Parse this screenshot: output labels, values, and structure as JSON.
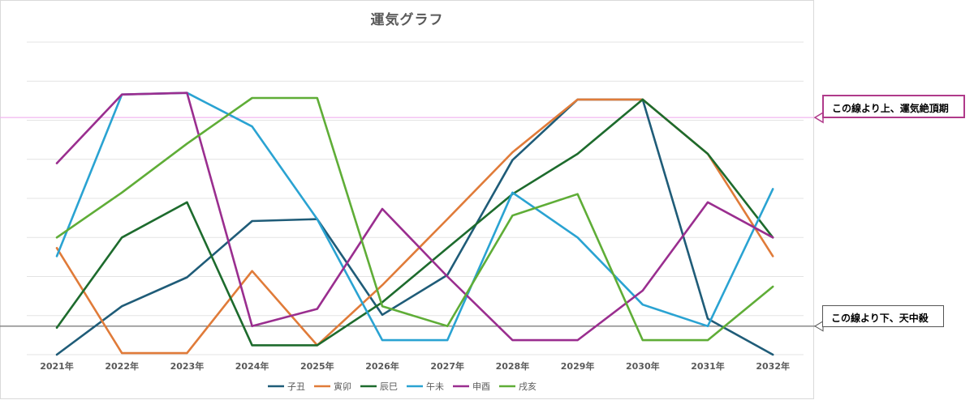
{
  "chart_data": {
    "type": "line",
    "title": "運気グラフ",
    "categories": [
      "2021年",
      "2022年",
      "2023年",
      "2024年",
      "2025年",
      "2026年",
      "2027年",
      "2028年",
      "2029年",
      "2030年",
      "2031年",
      "2032年"
    ],
    "ylim": [
      0,
      8
    ],
    "grid": true,
    "legend_position": "bottom",
    "series": [
      {
        "name": "子丑",
        "color": "#1f5c78",
        "values": [
          0.0,
          1.24,
          1.98,
          3.42,
          3.47,
          1.02,
          2.04,
          4.98,
          6.53,
          6.53,
          0.92,
          0.0
        ]
      },
      {
        "name": "寅卯",
        "color": "#e07b39",
        "values": [
          2.73,
          0.04,
          0.04,
          2.14,
          0.24,
          1.78,
          3.47,
          5.18,
          6.53,
          6.53,
          5.14,
          2.52
        ]
      },
      {
        "name": "辰巳",
        "color": "#1d6b2d",
        "values": [
          0.69,
          3.0,
          3.9,
          0.24,
          0.24,
          1.34,
          2.73,
          4.11,
          5.14,
          6.53,
          5.14,
          3.0
        ]
      },
      {
        "name": "午未",
        "color": "#2aa3d2",
        "values": [
          2.52,
          6.66,
          6.7,
          5.84,
          3.47,
          0.37,
          0.37,
          4.15,
          3.0,
          1.28,
          0.73,
          4.24
        ]
      },
      {
        "name": "申酉",
        "color": "#9a2e8f",
        "values": [
          4.9,
          6.66,
          6.7,
          0.73,
          1.17,
          3.73,
          2.0,
          0.37,
          0.37,
          1.64,
          3.9,
          3.0
        ]
      },
      {
        "name": "戌亥",
        "color": "#5fad37",
        "values": [
          3.0,
          4.15,
          5.4,
          6.57,
          6.57,
          1.24,
          0.73,
          3.56,
          4.11,
          0.37,
          0.37,
          1.74
        ]
      }
    ],
    "reference_lines": [
      {
        "label": "この線より上、運気絶頂期",
        "value": 6.07,
        "color": "#f0b6ef"
      },
      {
        "label": "この線より下、天中殺",
        "value": 0.73,
        "color": "#7f7f7f"
      }
    ]
  }
}
